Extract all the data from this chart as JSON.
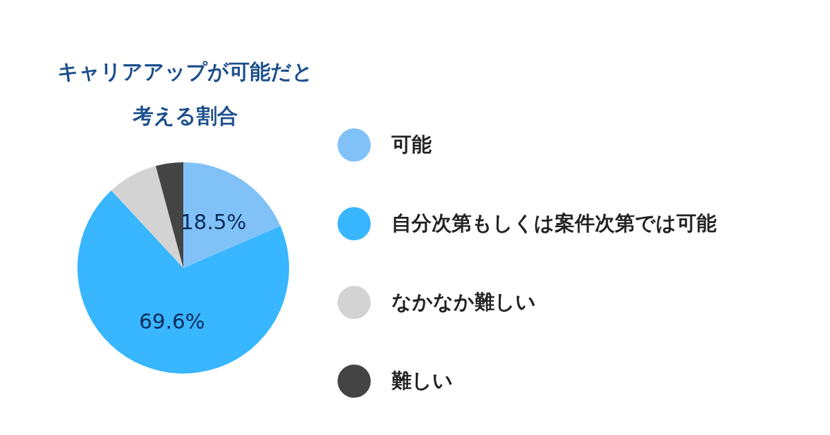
{
  "chart_data": {
    "type": "pie",
    "title": "キャリアアップが可能だと考える割合",
    "categories": [
      "可能",
      "自分次第もしくは案件次第では可能",
      "なかなか難しい",
      "難しい"
    ],
    "values": [
      18.5,
      69.6,
      7.7,
      4.2
    ],
    "colors": [
      "#80c2f8",
      "#38b6ff",
      "#d3d3d3",
      "#444444"
    ],
    "value_labels": [
      "18.5%",
      "69.6%",
      null,
      null
    ],
    "legend": "right"
  }
}
